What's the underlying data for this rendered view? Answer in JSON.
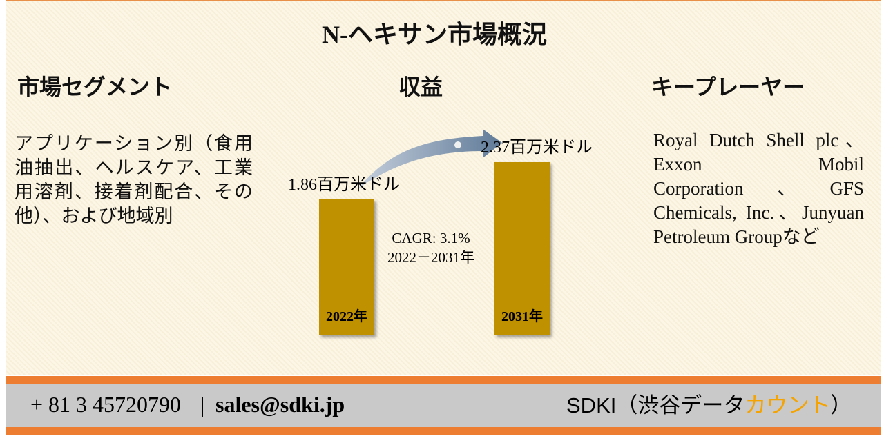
{
  "title": "N-ヘキサン市場概況",
  "segments": {
    "heading": "市場セグメント",
    "text": "アプリケーション別（食用油抽出、ヘルスケア、工業用溶剤、接着剤配合、その他）、および地域別"
  },
  "revenue": {
    "heading": "収益",
    "bars": [
      {
        "label": "2022年",
        "value": 1.86,
        "value_label": "1.86百万米ドル"
      },
      {
        "label": "2031年",
        "value": 2.37,
        "value_label": "2.37百万米ドル"
      }
    ],
    "cagr": "CAGR: 3.1%",
    "period": "2022－2031年"
  },
  "players": {
    "heading": "キープレーヤー",
    "text": "Royal Dutch Shell plc、Exxon Mobil Corporation、GFS Chemicals, Inc.、Junyuan Petroleum Groupなど"
  },
  "footer": {
    "phone": "+ 81 3 45720790",
    "separator": "|",
    "email": "sales@sdki.jp",
    "company": "SDKI（渋谷データ",
    "company_highlight": "カウント",
    "company_end": "）"
  }
}
